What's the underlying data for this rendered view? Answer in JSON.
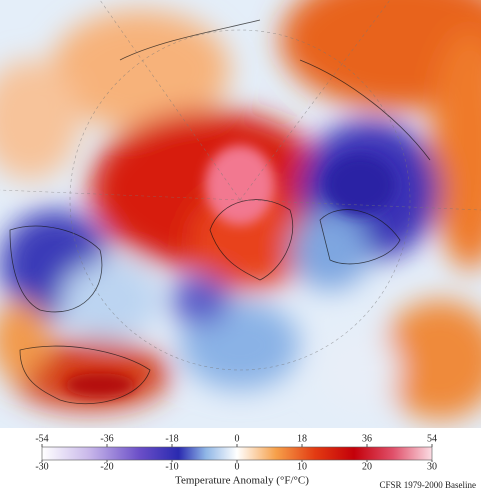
{
  "map": {
    "colorbar": {
      "label": "Temperature Anomaly (°F/°C)",
      "fahrenheit_range": [
        -54,
        54
      ],
      "fahrenheit_ticks": [
        -54,
        -36,
        -18,
        0,
        18,
        36,
        54
      ],
      "celsius_range": [
        -30,
        30
      ],
      "celsius_ticks": [
        -30,
        -20,
        -10,
        0,
        10,
        20,
        30
      ]
    },
    "credit": "CFSR 1979-2000 Baseline"
  }
}
